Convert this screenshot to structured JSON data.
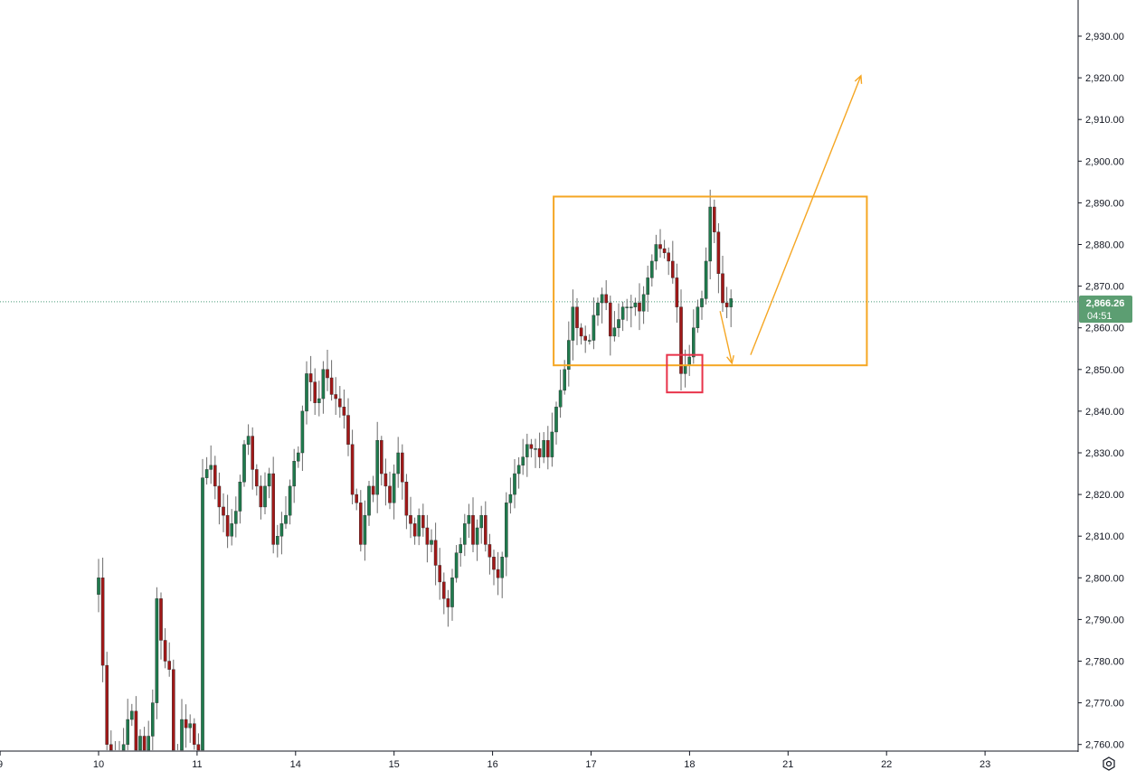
{
  "chart_data": {
    "type": "candlestick",
    "title": "",
    "colors": {
      "up": "#1f7a4d",
      "down": "#a01818",
      "wick": "#6b6b6b",
      "zone": "#f5a623",
      "marker": "#e8334a",
      "last_price_bg": "#5c9e72",
      "last_price_line": "#4a9b7a",
      "axis_line": "#131722",
      "axis_text": "#131722"
    },
    "y_axis": {
      "min": 2760,
      "max": 2930,
      "step": 10,
      "tick_labels": [
        "2,930.00",
        "2,920.00",
        "2,910.00",
        "2,900.00",
        "2,890.00",
        "2,880.00",
        "2,870.00",
        "2,860.00",
        "2,850.00",
        "2,840.00",
        "2,830.00",
        "2,820.00",
        "2,810.00",
        "2,800.00",
        "2,790.00",
        "2,780.00",
        "2,770.00",
        "2,760.00"
      ],
      "position": "right"
    },
    "x_axis": {
      "tick_labels": [
        "9",
        "10",
        "11",
        "14",
        "15",
        "16",
        "17",
        "18",
        "21",
        "22",
        "23"
      ],
      "tick_index": [
        -1,
        0,
        1,
        2,
        3,
        4,
        5,
        6,
        7,
        8,
        9
      ]
    },
    "last_price": {
      "value": 2866.26,
      "label": "2,866.26",
      "countdown": "04:51"
    },
    "annotations": {
      "range_box": {
        "from_x": 4.62,
        "to_x": 7.8,
        "high": 2891.5,
        "low": 2851.0
      },
      "small_box": {
        "from_x": 5.77,
        "to_x": 6.13,
        "high": 2853.5,
        "low": 2844.5
      },
      "arrow_down": {
        "from": [
          6.31,
          2864.0
        ],
        "to": [
          6.43,
          2851.5
        ]
      },
      "arrow_up": {
        "from": [
          6.62,
          2853.5
        ],
        "to": [
          7.74,
          2920.5
        ]
      }
    },
    "closes": [
      2800,
      2779,
      2760,
      2754,
      2757,
      2753,
      2760,
      2766,
      2768,
      2758,
      2762,
      2758,
      2762,
      2770,
      2795,
      2785,
      2780,
      2778,
      2758,
      2758,
      2766,
      2764,
      2765,
      2760,
      2757,
      2824,
      2826,
      2827,
      2822,
      2817,
      2815,
      2810,
      2813,
      2816,
      2823,
      2832,
      2834,
      2826,
      2822,
      2817,
      2822,
      2825,
      2808,
      2810,
      2813,
      2815,
      2822,
      2828,
      2830,
      2840,
      2849,
      2847,
      2842,
      2843,
      2850,
      2848,
      2844,
      2843,
      2841,
      2839,
      2832,
      2820,
      2818,
      2808,
      2815,
      2822,
      2820,
      2833,
      2825,
      2822,
      2818,
      2825,
      2830,
      2823,
      2815,
      2813,
      2810,
      2815,
      2812,
      2808,
      2809,
      2803,
      2799,
      2795,
      2793,
      2800,
      2806,
      2808,
      2813,
      2815,
      2808,
      2812,
      2815,
      2808,
      2805,
      2802,
      2800,
      2805,
      2818,
      2820,
      2825,
      2827,
      2829,
      2832,
      2831,
      2831,
      2829,
      2833,
      2829,
      2835,
      2841,
      2845,
      2850,
      2857,
      2865,
      2860,
      2858,
      2857,
      2857,
      2863,
      2866,
      2868,
      2866,
      2858,
      2860,
      2862,
      2865,
      2865,
      2865,
      2866,
      2864,
      2868,
      2872,
      2876,
      2880,
      2879,
      2878,
      2876,
      2872,
      2865,
      2849,
      2851,
      2853,
      2860,
      2865,
      2867,
      2876,
      2889,
      2883,
      2873,
      2866,
      2865,
      2867
    ]
  }
}
